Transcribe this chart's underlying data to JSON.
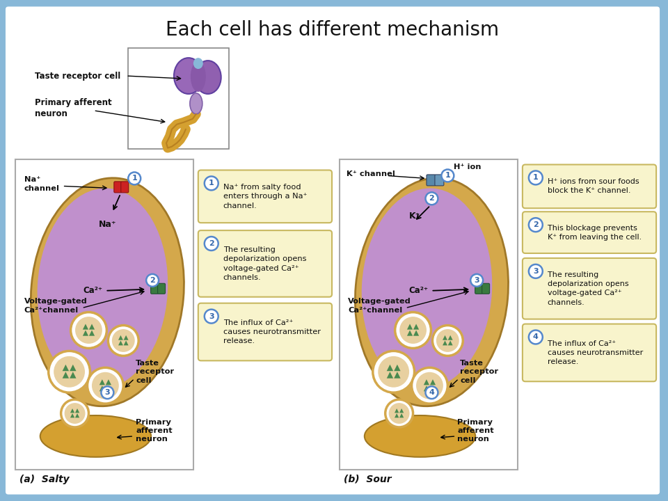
{
  "title": "Each cell has different mechanism",
  "title_fontsize": 20,
  "title_color": "#111111",
  "background_color": "#88b8d8",
  "fig_width": 9.6,
  "fig_height": 7.2,
  "cell_outer_color": "#d4a84b",
  "cell_inner_color": "#b890cc",
  "vesicle_outer": "#d4a84b",
  "vesicle_inner_color": "#c8a060",
  "vesicle_green": "#4a8a50",
  "channel_red": "#cc3333",
  "channel_green": "#3a7a4a",
  "channel_blue_dark": "#507898",
  "channel_blue_light": "#6090b8",
  "box_fill": "#f8f4cc",
  "box_border": "#c8b860",
  "text_dark": "#111111",
  "text_label": "#222222",
  "circle_bg": "white",
  "circle_edge": "#5588cc",
  "circle_text": "#3366aa",
  "label_a": "(a)  Salty",
  "label_b": "(b)  Sour",
  "salty_steps": [
    "Na⁺ from salty food\nenters through a Na⁺\nchannel.",
    "The resulting\ndepolarization opens\nvoltage-gated Ca²⁺\nchannels.",
    "The influx of Ca²⁺\ncauses neurotransmitter\nrelease."
  ],
  "sour_steps": [
    "H⁺ ions from sour foods\nblock the K⁺ channel.",
    "This blockage prevents\nK⁺ from leaving the cell.",
    "The resulting\ndepolarization opens\nvoltage-gated Ca²⁺\nchannels.",
    "The influx of Ca²⁺\ncauses neurotransmitter\nrelease."
  ]
}
